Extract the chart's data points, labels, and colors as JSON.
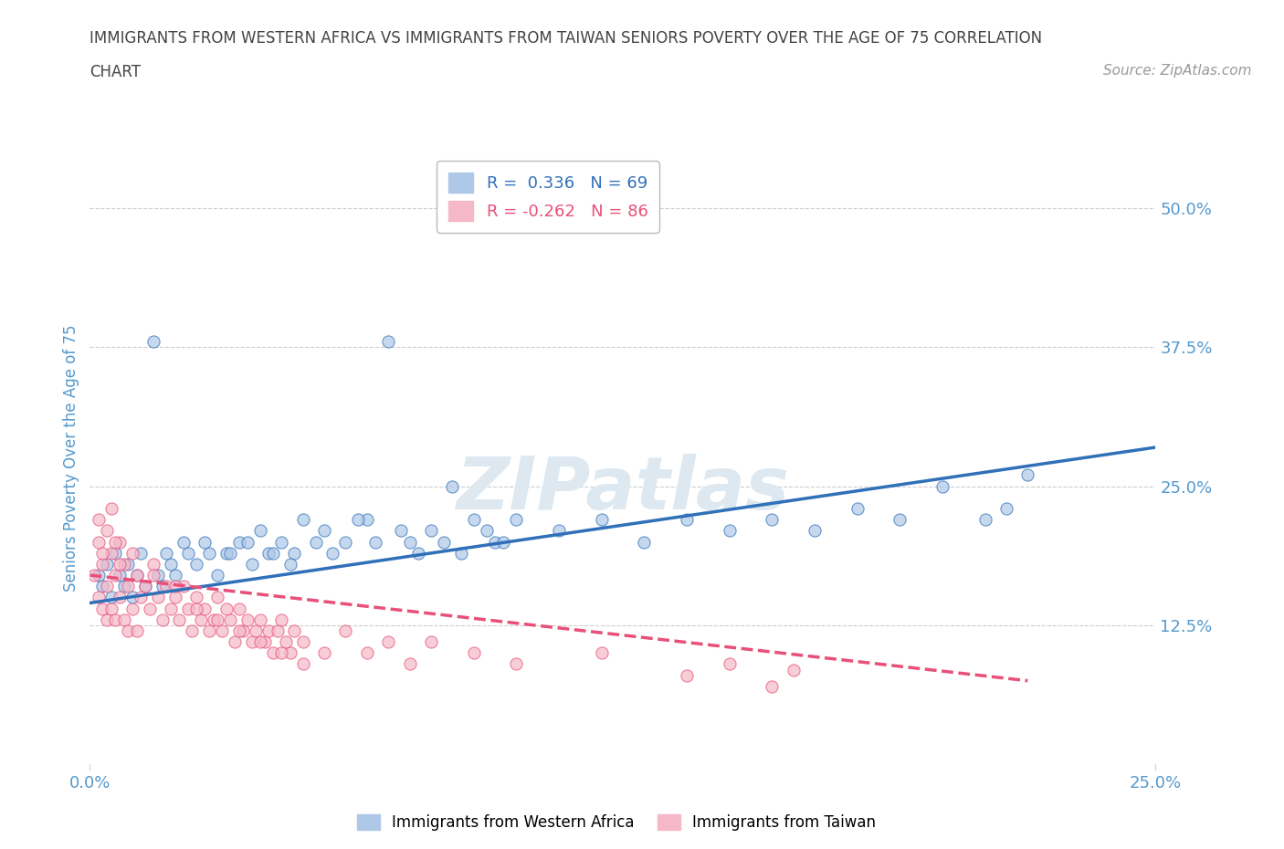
{
  "title_line1": "IMMIGRANTS FROM WESTERN AFRICA VS IMMIGRANTS FROM TAIWAN SENIORS POVERTY OVER THE AGE OF 75 CORRELATION",
  "title_line2": "CHART",
  "source_text": "Source: ZipAtlas.com",
  "ylabel": "Seniors Poverty Over the Age of 75",
  "ytick_labels": [
    "12.5%",
    "25.0%",
    "37.5%",
    "50.0%"
  ],
  "ytick_values": [
    0.125,
    0.25,
    0.375,
    0.5
  ],
  "xmin": 0.0,
  "xmax": 0.25,
  "ymin": 0.0,
  "ymax": 0.55,
  "legend_r1": "R =  0.336",
  "legend_n1": "N = 69",
  "legend_r2": "R = -0.262",
  "legend_n2": "N = 86",
  "blue_color": "#aec8e8",
  "pink_color": "#f4b8c8",
  "blue_line_color": "#3070b8",
  "pink_line_color": "#e8507a",
  "title_color": "#444444",
  "axis_label_color": "#5599cc",
  "source_color": "#999999",
  "watermark_color": "#dde8f0",
  "blue_scatter_x": [
    0.002,
    0.003,
    0.004,
    0.005,
    0.006,
    0.007,
    0.008,
    0.009,
    0.01,
    0.011,
    0.012,
    0.013,
    0.015,
    0.016,
    0.017,
    0.018,
    0.019,
    0.02,
    0.022,
    0.025,
    0.028,
    0.03,
    0.032,
    0.035,
    0.038,
    0.04,
    0.042,
    0.045,
    0.048,
    0.05,
    0.055,
    0.06,
    0.065,
    0.07,
    0.075,
    0.08,
    0.085,
    0.09,
    0.095,
    0.1,
    0.11,
    0.12,
    0.13,
    0.14,
    0.15,
    0.16,
    0.17,
    0.18,
    0.19,
    0.2,
    0.21,
    0.215,
    0.22,
    0.023,
    0.027,
    0.033,
    0.037,
    0.043,
    0.047,
    0.053,
    0.057,
    0.063,
    0.067,
    0.073,
    0.077,
    0.083,
    0.087,
    0.093,
    0.097
  ],
  "blue_scatter_y": [
    0.17,
    0.16,
    0.18,
    0.15,
    0.19,
    0.17,
    0.16,
    0.18,
    0.15,
    0.17,
    0.19,
    0.16,
    0.38,
    0.17,
    0.16,
    0.19,
    0.18,
    0.17,
    0.2,
    0.18,
    0.19,
    0.17,
    0.19,
    0.2,
    0.18,
    0.21,
    0.19,
    0.2,
    0.19,
    0.22,
    0.21,
    0.2,
    0.22,
    0.38,
    0.2,
    0.21,
    0.25,
    0.22,
    0.2,
    0.22,
    0.21,
    0.22,
    0.2,
    0.22,
    0.21,
    0.22,
    0.21,
    0.23,
    0.22,
    0.25,
    0.22,
    0.23,
    0.26,
    0.19,
    0.2,
    0.19,
    0.2,
    0.19,
    0.18,
    0.2,
    0.19,
    0.22,
    0.2,
    0.21,
    0.19,
    0.2,
    0.19,
    0.21,
    0.2
  ],
  "pink_scatter_x": [
    0.001,
    0.002,
    0.002,
    0.003,
    0.003,
    0.004,
    0.004,
    0.005,
    0.005,
    0.006,
    0.006,
    0.007,
    0.007,
    0.008,
    0.008,
    0.009,
    0.009,
    0.01,
    0.01,
    0.011,
    0.011,
    0.012,
    0.013,
    0.014,
    0.015,
    0.016,
    0.017,
    0.018,
    0.019,
    0.02,
    0.021,
    0.022,
    0.023,
    0.024,
    0.025,
    0.026,
    0.027,
    0.028,
    0.029,
    0.03,
    0.031,
    0.032,
    0.033,
    0.034,
    0.035,
    0.036,
    0.037,
    0.038,
    0.039,
    0.04,
    0.041,
    0.042,
    0.043,
    0.044,
    0.045,
    0.046,
    0.047,
    0.048,
    0.05,
    0.055,
    0.06,
    0.065,
    0.07,
    0.075,
    0.08,
    0.09,
    0.1,
    0.12,
    0.14,
    0.15,
    0.16,
    0.165,
    0.002,
    0.003,
    0.004,
    0.005,
    0.006,
    0.007,
    0.015,
    0.02,
    0.025,
    0.03,
    0.035,
    0.04,
    0.045,
    0.05
  ],
  "pink_scatter_y": [
    0.17,
    0.2,
    0.15,
    0.18,
    0.14,
    0.16,
    0.13,
    0.19,
    0.14,
    0.17,
    0.13,
    0.2,
    0.15,
    0.18,
    0.13,
    0.16,
    0.12,
    0.19,
    0.14,
    0.17,
    0.12,
    0.15,
    0.16,
    0.14,
    0.18,
    0.15,
    0.13,
    0.16,
    0.14,
    0.15,
    0.13,
    0.16,
    0.14,
    0.12,
    0.15,
    0.13,
    0.14,
    0.12,
    0.13,
    0.15,
    0.12,
    0.14,
    0.13,
    0.11,
    0.14,
    0.12,
    0.13,
    0.11,
    0.12,
    0.13,
    0.11,
    0.12,
    0.1,
    0.12,
    0.13,
    0.11,
    0.1,
    0.12,
    0.11,
    0.1,
    0.12,
    0.1,
    0.11,
    0.09,
    0.11,
    0.1,
    0.09,
    0.1,
    0.08,
    0.09,
    0.07,
    0.085,
    0.22,
    0.19,
    0.21,
    0.23,
    0.2,
    0.18,
    0.17,
    0.16,
    0.14,
    0.13,
    0.12,
    0.11,
    0.1,
    0.09
  ],
  "blue_trend_x": [
    0.0,
    0.25
  ],
  "blue_trend_y": [
    0.145,
    0.285
  ],
  "pink_trend_x": [
    0.0,
    0.22
  ],
  "pink_trend_y": [
    0.17,
    0.075
  ],
  "grid_color": "#cccccc",
  "bg_color": "#ffffff"
}
